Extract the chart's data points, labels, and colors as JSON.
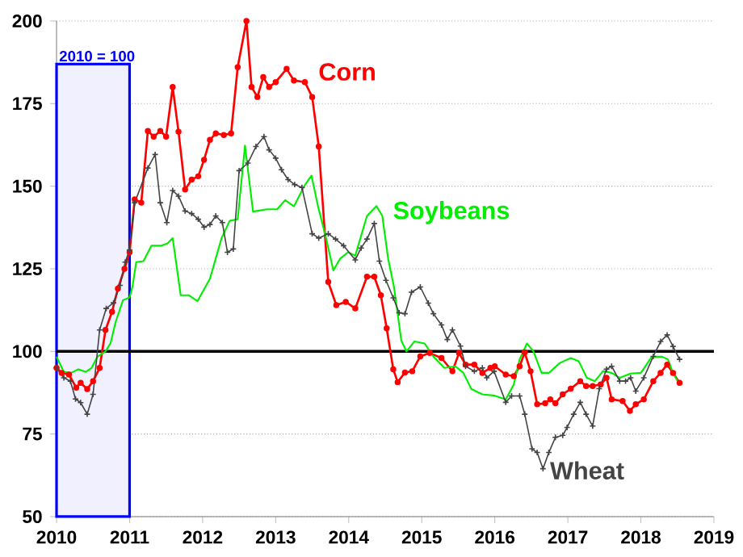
{
  "chart_data": {
    "type": "line",
    "xlim": [
      2010,
      2019
    ],
    "xticks": [
      2010,
      2011,
      2012,
      2013,
      2014,
      2015,
      2016,
      2017,
      2018,
      2019
    ],
    "ylim": [
      50,
      200
    ],
    "yticks": [
      50,
      75,
      100,
      125,
      150,
      175,
      200
    ],
    "grid": "y",
    "legend": false,
    "ref_lines": [
      {
        "axis": "y",
        "value": 100,
        "color": "#000000"
      }
    ],
    "bands": [
      {
        "axis": "x",
        "from": 2010,
        "to": 2011,
        "label": "2010 = 100",
        "color": "#0000ff"
      }
    ],
    "series": [
      {
        "name": "Corn",
        "color": "#ff0000",
        "marker": "circle",
        "x": [
          2010.0,
          2010.07,
          2010.17,
          2010.27,
          2010.33,
          2010.42,
          2010.5,
          2010.59,
          2010.67,
          2010.76,
          2010.84,
          2010.93,
          2011.0,
          2011.07,
          2011.16,
          2011.25,
          2011.33,
          2011.42,
          2011.5,
          2011.59,
          2011.67,
          2011.76,
          2011.85,
          2011.94,
          2012.02,
          2012.1,
          2012.18,
          2012.29,
          2012.39,
          2012.48,
          2012.6,
          2012.67,
          2012.75,
          2012.83,
          2012.91,
          2013.0,
          2013.15,
          2013.25,
          2013.4,
          2013.5,
          2013.59,
          2013.72,
          2013.83,
          2013.96,
          2014.09,
          2014.25,
          2014.35,
          2014.44,
          2014.52,
          2014.61,
          2014.67,
          2014.77,
          2014.87,
          2014.98,
          2015.11,
          2015.27,
          2015.42,
          2015.51,
          2015.6,
          2015.72,
          2015.83,
          2015.94,
          2016.0,
          2016.15,
          2016.26,
          2016.34,
          2016.41,
          2016.49,
          2016.58,
          2016.69,
          2016.76,
          2016.83,
          2016.93,
          2017.04,
          2017.17,
          2017.25,
          2017.34,
          2017.45,
          2017.53,
          2017.6,
          2017.75,
          2017.85,
          2017.93,
          2018.04,
          2018.17,
          2018.27,
          2018.36,
          2018.44,
          2018.53
        ],
        "values": [
          95,
          93.5,
          93,
          89,
          90.5,
          88.6,
          91,
          95,
          106.5,
          112,
          119,
          125,
          130,
          146,
          145,
          166.7,
          165,
          166.7,
          165,
          180,
          166.5,
          149,
          152,
          153,
          158,
          164,
          166,
          165.5,
          166,
          186,
          200,
          180,
          177,
          183,
          180,
          181.5,
          185.5,
          182,
          181.5,
          177,
          162,
          121,
          114,
          115,
          113,
          122.6,
          122.6,
          117,
          107,
          94.6,
          90.7,
          93.6,
          94,
          98.5,
          99.5,
          98,
          94,
          99.5,
          96,
          96,
          93.5,
          95,
          95.5,
          93,
          92.5,
          95.5,
          99.7,
          94,
          84,
          84.3,
          85.5,
          84.3,
          87,
          88.7,
          91,
          89.5,
          89.5,
          90,
          92,
          85.5,
          85,
          82,
          84,
          85.5,
          91,
          93.5,
          96,
          93.5,
          90.5
        ]
      },
      {
        "name": "Soybeans",
        "color": "#00ee00",
        "x": [
          2010.0,
          2010.1,
          2010.2,
          2010.3,
          2010.4,
          2010.48,
          2010.56,
          2010.67,
          2010.74,
          2010.81,
          2010.91,
          2011.0,
          2011.04,
          2011.09,
          2011.19,
          2011.3,
          2011.44,
          2011.52,
          2011.59,
          2011.7,
          2011.81,
          2011.93,
          2012.02,
          2012.1,
          2012.26,
          2012.37,
          2012.48,
          2012.58,
          2012.69,
          2012.88,
          2013.02,
          2013.13,
          2013.25,
          2013.39,
          2013.49,
          2013.58,
          2013.69,
          2013.79,
          2013.88,
          2013.99,
          2014.09,
          2014.25,
          2014.38,
          2014.46,
          2014.54,
          2014.62,
          2014.72,
          2014.79,
          2014.9,
          2015.04,
          2015.16,
          2015.31,
          2015.46,
          2015.57,
          2015.68,
          2015.83,
          2016.0,
          2016.15,
          2016.26,
          2016.34,
          2016.44,
          2016.53,
          2016.64,
          2016.74,
          2016.89,
          2017.04,
          2017.15,
          2017.26,
          2017.37,
          2017.48,
          2017.6,
          2017.71,
          2017.86,
          2018.0,
          2018.15,
          2018.29,
          2018.37,
          2018.44,
          2018.53
        ],
        "values": [
          98.4,
          93.8,
          93.5,
          94.6,
          93.8,
          95,
          98.4,
          100,
          102.5,
          109,
          115.5,
          116.3,
          119.6,
          127,
          127.3,
          132,
          132,
          132.7,
          134.3,
          117,
          117,
          115.2,
          118.8,
          122,
          134.3,
          139.5,
          140,
          162.3,
          142.3,
          143,
          143,
          145.8,
          143.9,
          150,
          153.2,
          143.9,
          134.3,
          124.5,
          128,
          130,
          129,
          141,
          144,
          141,
          128,
          119.5,
          103.3,
          100,
          103,
          102.4,
          98.4,
          95,
          95.5,
          93.5,
          88.6,
          87,
          86.6,
          85.5,
          90,
          97.6,
          102.4,
          100,
          93.5,
          93.5,
          96.5,
          98,
          97,
          92,
          91,
          94,
          93.5,
          92,
          93.3,
          93.5,
          98.4,
          98.4,
          97.6,
          93.5,
          90
        ]
      },
      {
        "name": "Wheat",
        "color": "#444444",
        "marker": "cross",
        "x": [
          2010.0,
          2010.1,
          2010.19,
          2010.26,
          2010.33,
          2010.42,
          2010.5,
          2010.59,
          2010.68,
          2010.78,
          2010.87,
          2010.94,
          2011.0,
          2011.07,
          2011.25,
          2011.35,
          2011.42,
          2011.51,
          2011.59,
          2011.67,
          2011.76,
          2011.85,
          2011.94,
          2012.02,
          2012.1,
          2012.18,
          2012.27,
          2012.34,
          2012.42,
          2012.5,
          2012.62,
          2012.73,
          2012.84,
          2012.91,
          2013.0,
          2013.08,
          2013.17,
          2013.26,
          2013.36,
          2013.5,
          2013.59,
          2013.72,
          2013.82,
          2013.93,
          2014.09,
          2014.17,
          2014.25,
          2014.35,
          2014.42,
          2014.51,
          2014.61,
          2014.69,
          2014.77,
          2014.86,
          2014.98,
          2015.09,
          2015.16,
          2015.27,
          2015.35,
          2015.42,
          2015.53,
          2015.6,
          2015.72,
          2015.83,
          2015.89,
          2015.99,
          2016.15,
          2016.23,
          2016.34,
          2016.41,
          2016.51,
          2016.58,
          2016.66,
          2016.74,
          2016.83,
          2016.93,
          2016.99,
          2017.08,
          2017.17,
          2017.25,
          2017.34,
          2017.43,
          2017.53,
          2017.6,
          2017.71,
          2017.79,
          2017.86,
          2017.93,
          2018.04,
          2018.17,
          2018.27,
          2018.36,
          2018.44,
          2018.53
        ],
        "values": [
          95,
          92,
          91,
          85.6,
          84.5,
          81,
          87,
          106.5,
          113,
          114.7,
          120,
          127,
          130.7,
          145,
          155.5,
          159.6,
          145,
          139,
          148.7,
          147,
          142.5,
          141.7,
          140,
          137.6,
          138.4,
          141,
          139,
          130,
          131,
          154.7,
          157,
          162,
          165,
          161,
          158.5,
          155,
          152,
          150.5,
          149.6,
          135.6,
          134.3,
          135.6,
          134,
          132,
          127.7,
          131.3,
          134,
          138.7,
          127.3,
          121.5,
          116.2,
          111.7,
          111.4,
          117.9,
          119.5,
          114.6,
          111.4,
          108,
          103.6,
          106.5,
          101.6,
          95.5,
          94,
          95,
          92,
          94,
          84.6,
          86.5,
          86.5,
          81,
          70.5,
          69.4,
          64.5,
          69.4,
          74,
          74.6,
          77,
          81,
          84.6,
          81,
          77.4,
          88.7,
          94.6,
          95.5,
          91,
          91,
          92,
          88,
          92,
          98.5,
          103,
          105,
          101.5,
          97.6
        ]
      }
    ]
  }
}
